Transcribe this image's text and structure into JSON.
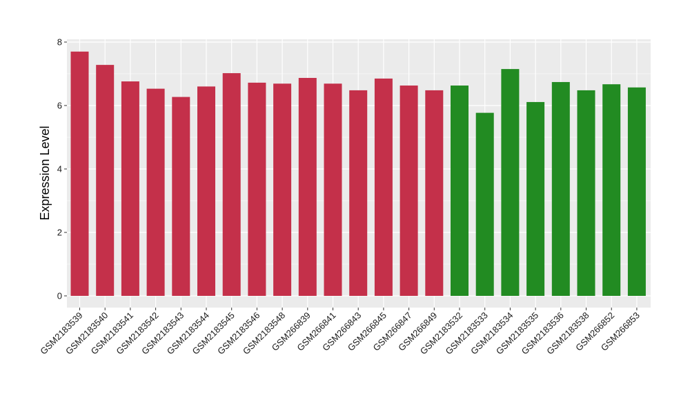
{
  "chart_data": {
    "type": "bar",
    "title": "",
    "xlabel": "",
    "ylabel": "Expression Level",
    "ylim": [
      0,
      8
    ],
    "yticks": [
      0,
      2,
      4,
      6,
      8
    ],
    "grid": true,
    "legend": "none",
    "colors": {
      "group_1": "#c4304a",
      "group_2": "#228b22",
      "panel_background": "#ebebeb",
      "grid": "#ffffff"
    },
    "categories": [
      "GSM2183539",
      "GSM2183540",
      "GSM2183541",
      "GSM2183542",
      "GSM2183543",
      "GSM2183544",
      "GSM2183545",
      "GSM2183546",
      "GSM2183548",
      "GSM266839",
      "GSM266841",
      "GSM266843",
      "GSM266845",
      "GSM266847",
      "GSM266849",
      "GSM2183532",
      "GSM2183533",
      "GSM2183534",
      "GSM2183535",
      "GSM2183536",
      "GSM2183538",
      "GSM266852",
      "GSM266853"
    ],
    "values": [
      7.7,
      7.28,
      6.76,
      6.53,
      6.27,
      6.6,
      7.02,
      6.72,
      6.69,
      6.87,
      6.69,
      6.48,
      6.85,
      6.63,
      6.48,
      6.63,
      5.77,
      7.15,
      6.11,
      6.74,
      6.48,
      6.67,
      6.57
    ],
    "groups": [
      1,
      1,
      1,
      1,
      1,
      1,
      1,
      1,
      1,
      1,
      1,
      1,
      1,
      1,
      1,
      2,
      2,
      2,
      2,
      2,
      2,
      2,
      2
    ]
  }
}
